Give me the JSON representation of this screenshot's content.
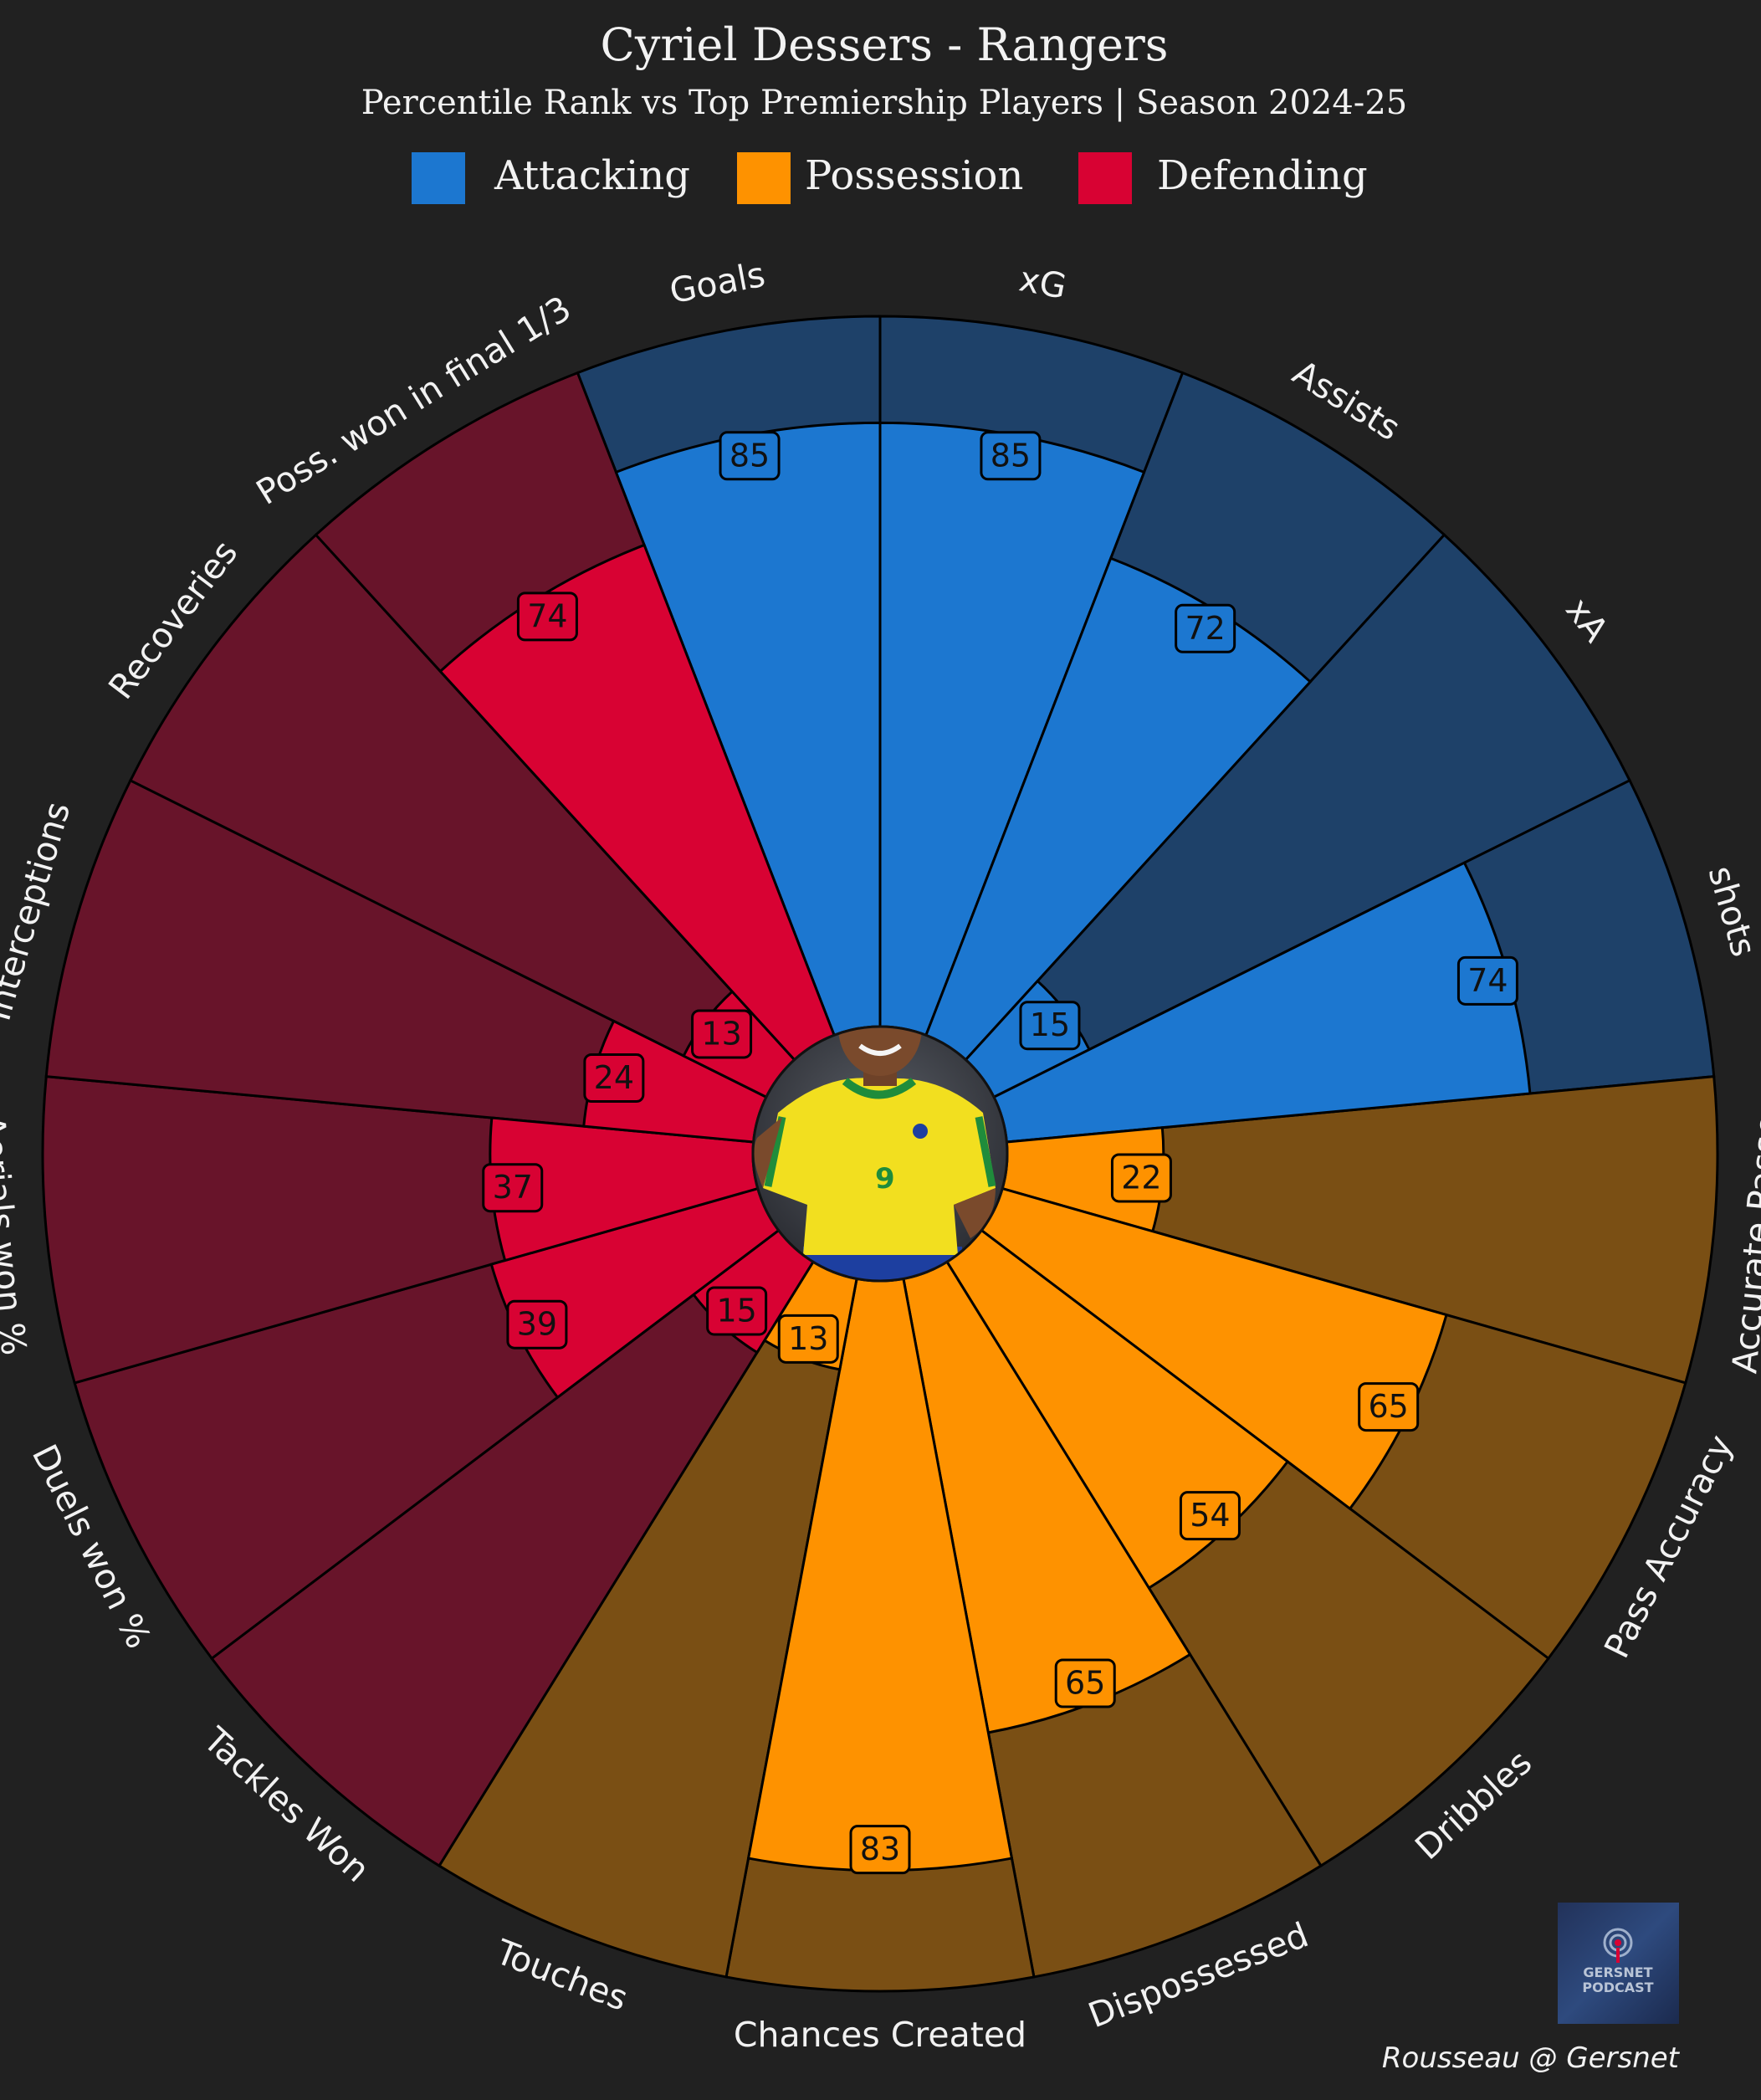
{
  "header": {
    "title": "Cyriel Dessers - Rangers",
    "subtitle": "Percentile Rank vs Top Premiership Players | Season 2024-25"
  },
  "legend": [
    {
      "label": "Attacking",
      "color": "#1c77d0"
    },
    {
      "label": "Possession",
      "color": "#fe9200"
    },
    {
      "label": "Defending",
      "color": "#d80233"
    }
  ],
  "chart_data": {
    "type": "pizza",
    "ylim": [
      0,
      100
    ],
    "groups": {
      "Attacking": {
        "color": "#1c77d0",
        "bg": "#1e4169"
      },
      "Possession": {
        "color": "#fe9200",
        "bg": "#7a4f14"
      },
      "Defending": {
        "color": "#d80233",
        "bg": "#68142a"
      }
    },
    "categories": [
      "Goals",
      "xG",
      "Assists",
      "xA",
      "shots",
      "Accurate Passes",
      "Pass Accuracy",
      "Dribbles",
      "Dispossessed",
      "Chances Created",
      "Touches",
      "Tackles Won",
      "Duels won %",
      "Aerials won %",
      "Interceptions",
      "Recoveries",
      "Poss. won in final 1/3"
    ],
    "values": [
      85,
      85,
      72,
      15,
      74,
      22,
      65,
      54,
      65,
      83,
      13,
      15,
      39,
      37,
      24,
      13,
      74
    ],
    "group_of_each": [
      "Attacking",
      "Attacking",
      "Attacking",
      "Attacking",
      "Attacking",
      "Possession",
      "Possession",
      "Possession",
      "Possession",
      "Possession",
      "Possession",
      "Defending",
      "Defending",
      "Defending",
      "Defending",
      "Defending",
      "Defending"
    ]
  },
  "center_image": {
    "icon": "player-photo"
  },
  "logo": {
    "line1": "GERSNET",
    "line2": "PODCAST",
    "icon": "podcast-mic-icon"
  },
  "credit": "Rousseau @ Gersnet"
}
